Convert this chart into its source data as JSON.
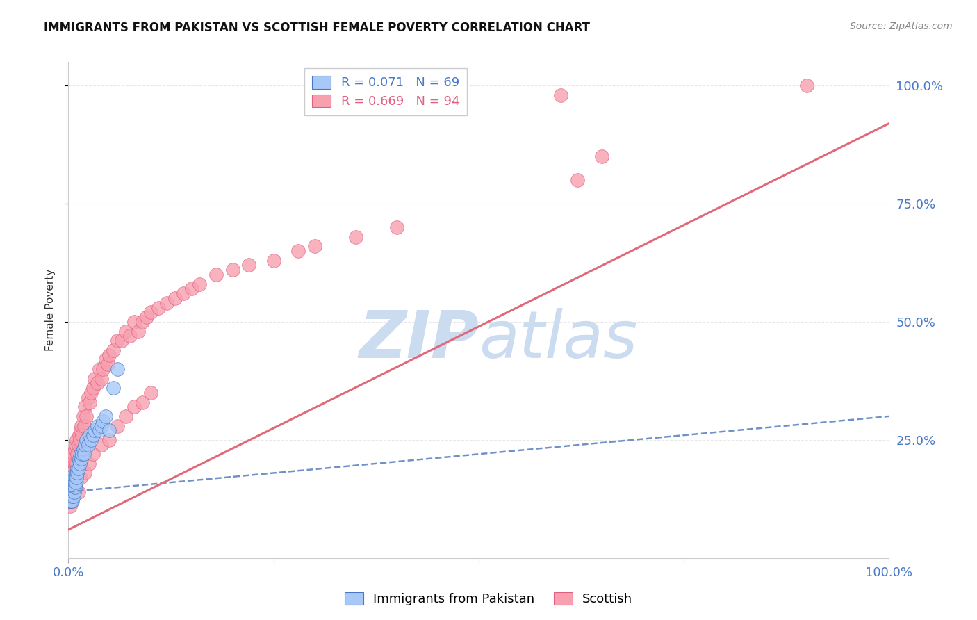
{
  "title": "IMMIGRANTS FROM PAKISTAN VS SCOTTISH FEMALE POVERTY CORRELATION CHART",
  "source": "Source: ZipAtlas.com",
  "ylabel": "Female Poverty",
  "legend_blue_r": "R = 0.071",
  "legend_blue_n": "N = 69",
  "legend_pink_r": "R = 0.669",
  "legend_pink_n": "N = 94",
  "blue_color": "#a8c8f8",
  "pink_color": "#f8a0b0",
  "blue_edge": "#4878c0",
  "pink_edge": "#e06080",
  "trendline_blue_color": "#7090c8",
  "trendline_pink_color": "#e06878",
  "watermark_color": "#ccdcf0",
  "background_color": "#ffffff",
  "grid_color": "#e8e8e8",
  "axis_label_color": "#4878c8",
  "xlim": [
    0,
    1.0
  ],
  "ylim": [
    0,
    1.05
  ],
  "blue_scatter_x": [
    0.001,
    0.001,
    0.001,
    0.001,
    0.001,
    0.001,
    0.002,
    0.002,
    0.002,
    0.002,
    0.002,
    0.002,
    0.002,
    0.002,
    0.003,
    0.003,
    0.003,
    0.003,
    0.003,
    0.003,
    0.003,
    0.004,
    0.004,
    0.004,
    0.004,
    0.004,
    0.005,
    0.005,
    0.005,
    0.005,
    0.006,
    0.006,
    0.006,
    0.006,
    0.007,
    0.007,
    0.007,
    0.008,
    0.008,
    0.009,
    0.009,
    0.01,
    0.01,
    0.011,
    0.011,
    0.012,
    0.012,
    0.013,
    0.014,
    0.015,
    0.016,
    0.017,
    0.018,
    0.019,
    0.02,
    0.022,
    0.024,
    0.026,
    0.028,
    0.03,
    0.032,
    0.035,
    0.038,
    0.04,
    0.042,
    0.045,
    0.05,
    0.055,
    0.06
  ],
  "blue_scatter_y": [
    0.14,
    0.15,
    0.16,
    0.12,
    0.13,
    0.17,
    0.14,
    0.15,
    0.13,
    0.16,
    0.12,
    0.17,
    0.15,
    0.14,
    0.13,
    0.16,
    0.14,
    0.15,
    0.12,
    0.16,
    0.13,
    0.15,
    0.14,
    0.16,
    0.13,
    0.12,
    0.15,
    0.14,
    0.16,
    0.13,
    0.16,
    0.15,
    0.14,
    0.13,
    0.17,
    0.15,
    0.14,
    0.16,
    0.15,
    0.17,
    0.16,
    0.18,
    0.17,
    0.19,
    0.18,
    0.2,
    0.19,
    0.21,
    0.2,
    0.22,
    0.21,
    0.22,
    0.23,
    0.22,
    0.24,
    0.25,
    0.24,
    0.26,
    0.25,
    0.26,
    0.27,
    0.28,
    0.27,
    0.28,
    0.29,
    0.3,
    0.27,
    0.36,
    0.4
  ],
  "pink_scatter_x": [
    0.001,
    0.001,
    0.002,
    0.002,
    0.002,
    0.003,
    0.003,
    0.003,
    0.004,
    0.004,
    0.005,
    0.005,
    0.005,
    0.006,
    0.006,
    0.007,
    0.007,
    0.008,
    0.008,
    0.009,
    0.009,
    0.01,
    0.01,
    0.011,
    0.012,
    0.013,
    0.014,
    0.015,
    0.016,
    0.017,
    0.018,
    0.019,
    0.02,
    0.022,
    0.024,
    0.026,
    0.028,
    0.03,
    0.032,
    0.035,
    0.038,
    0.04,
    0.042,
    0.045,
    0.048,
    0.05,
    0.055,
    0.06,
    0.065,
    0.07,
    0.075,
    0.08,
    0.085,
    0.09,
    0.095,
    0.1,
    0.11,
    0.12,
    0.13,
    0.14,
    0.15,
    0.16,
    0.18,
    0.2,
    0.22,
    0.25,
    0.28,
    0.3,
    0.35,
    0.4,
    0.001,
    0.002,
    0.003,
    0.004,
    0.005,
    0.006,
    0.008,
    0.01,
    0.012,
    0.015,
    0.02,
    0.025,
    0.03,
    0.04,
    0.05,
    0.06,
    0.07,
    0.08,
    0.09,
    0.1,
    0.6,
    0.9,
    0.62,
    0.65
  ],
  "pink_scatter_y": [
    0.13,
    0.15,
    0.14,
    0.16,
    0.18,
    0.15,
    0.17,
    0.2,
    0.16,
    0.19,
    0.14,
    0.18,
    0.21,
    0.17,
    0.22,
    0.16,
    0.2,
    0.18,
    0.23,
    0.19,
    0.24,
    0.2,
    0.25,
    0.22,
    0.24,
    0.26,
    0.25,
    0.27,
    0.28,
    0.26,
    0.3,
    0.28,
    0.32,
    0.3,
    0.34,
    0.33,
    0.35,
    0.36,
    0.38,
    0.37,
    0.4,
    0.38,
    0.4,
    0.42,
    0.41,
    0.43,
    0.44,
    0.46,
    0.46,
    0.48,
    0.47,
    0.5,
    0.48,
    0.5,
    0.51,
    0.52,
    0.53,
    0.54,
    0.55,
    0.56,
    0.57,
    0.58,
    0.6,
    0.61,
    0.62,
    0.63,
    0.65,
    0.66,
    0.68,
    0.7,
    0.12,
    0.11,
    0.13,
    0.14,
    0.12,
    0.13,
    0.15,
    0.16,
    0.14,
    0.17,
    0.18,
    0.2,
    0.22,
    0.24,
    0.25,
    0.28,
    0.3,
    0.32,
    0.33,
    0.35,
    0.98,
    1.0,
    0.8,
    0.85
  ],
  "pink_trendline_x0": 0.0,
  "pink_trendline_y0": 0.06,
  "pink_trendline_x1": 1.0,
  "pink_trendline_y1": 0.92,
  "blue_trendline_x0": 0.0,
  "blue_trendline_y0": 0.14,
  "blue_trendline_x1": 1.0,
  "blue_trendline_y1": 0.3
}
